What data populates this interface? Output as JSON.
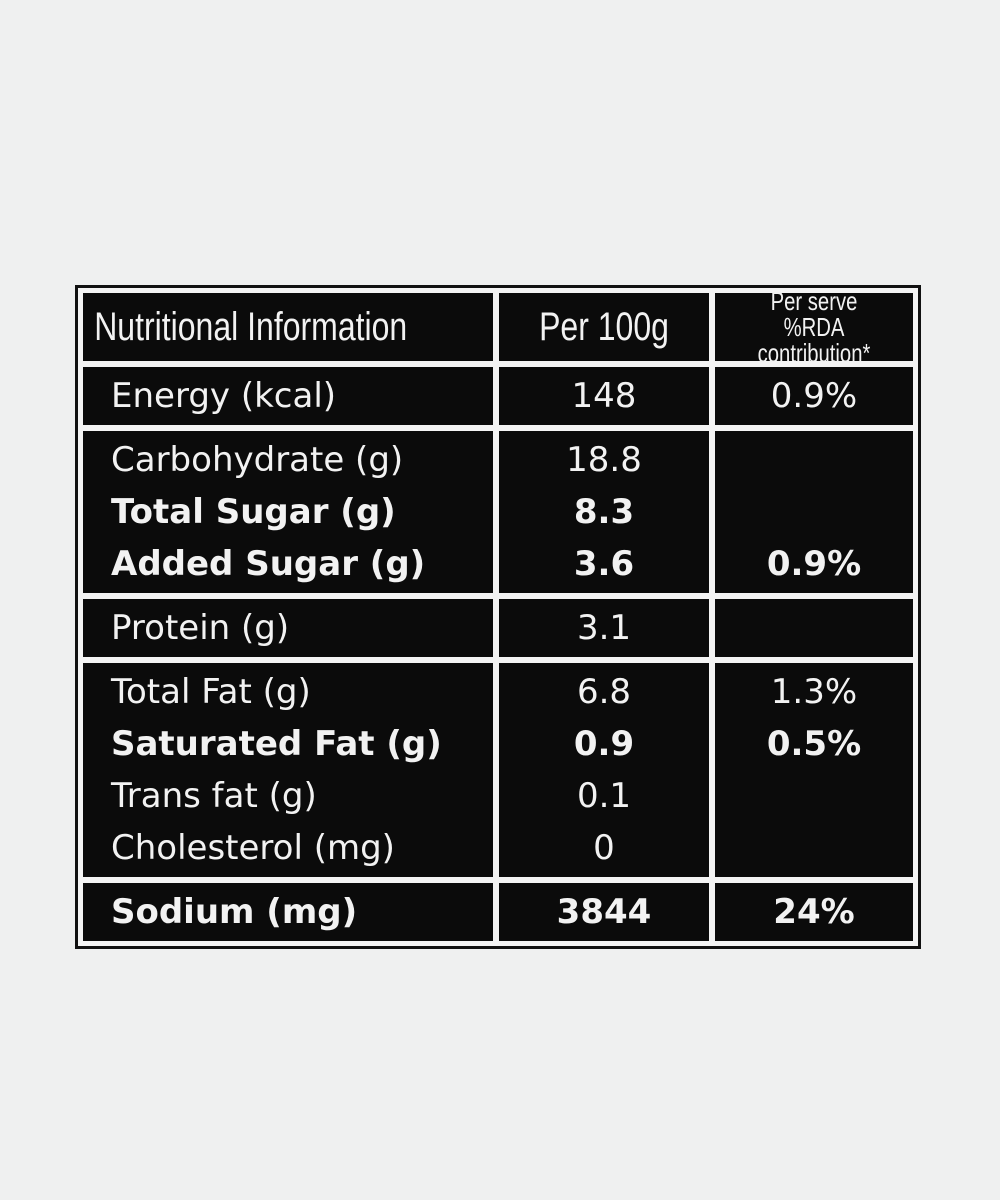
{
  "header": {
    "nutrient": "Nutritional Information",
    "per100g": "Per 100g",
    "rda": "Per serve %RDA contribution*"
  },
  "groups": [
    {
      "rows": [
        {
          "label": "Energy (kcal)",
          "per100g": "148",
          "rda": "0.9%"
        }
      ]
    },
    {
      "rows": [
        {
          "label": "Carbohydrate (g)",
          "per100g": "18.8"
        },
        {
          "label": "Total Sugar (g)",
          "per100g": "8.3",
          "bold": true
        },
        {
          "label": "Added Sugar (g)",
          "per100g": "3.6",
          "rda": "0.9%",
          "bold": true
        }
      ]
    },
    {
      "rows": [
        {
          "label": "Protein (g)",
          "per100g": "3.1"
        }
      ]
    },
    {
      "rows": [
        {
          "label": "Total Fat (g)",
          "per100g": "6.8",
          "rda": "1.3%"
        },
        {
          "label": "Saturated Fat (g)",
          "per100g": "0.9",
          "rda": "0.5%",
          "bold": true
        },
        {
          "label": "Trans fat (g)",
          "per100g": "0.1"
        },
        {
          "label": "Cholesterol (mg)",
          "per100g": "0"
        }
      ]
    },
    {
      "rows": [
        {
          "label": "Sodium (mg)",
          "per100g": "3844",
          "rda": "24%",
          "bold": true
        }
      ]
    }
  ]
}
